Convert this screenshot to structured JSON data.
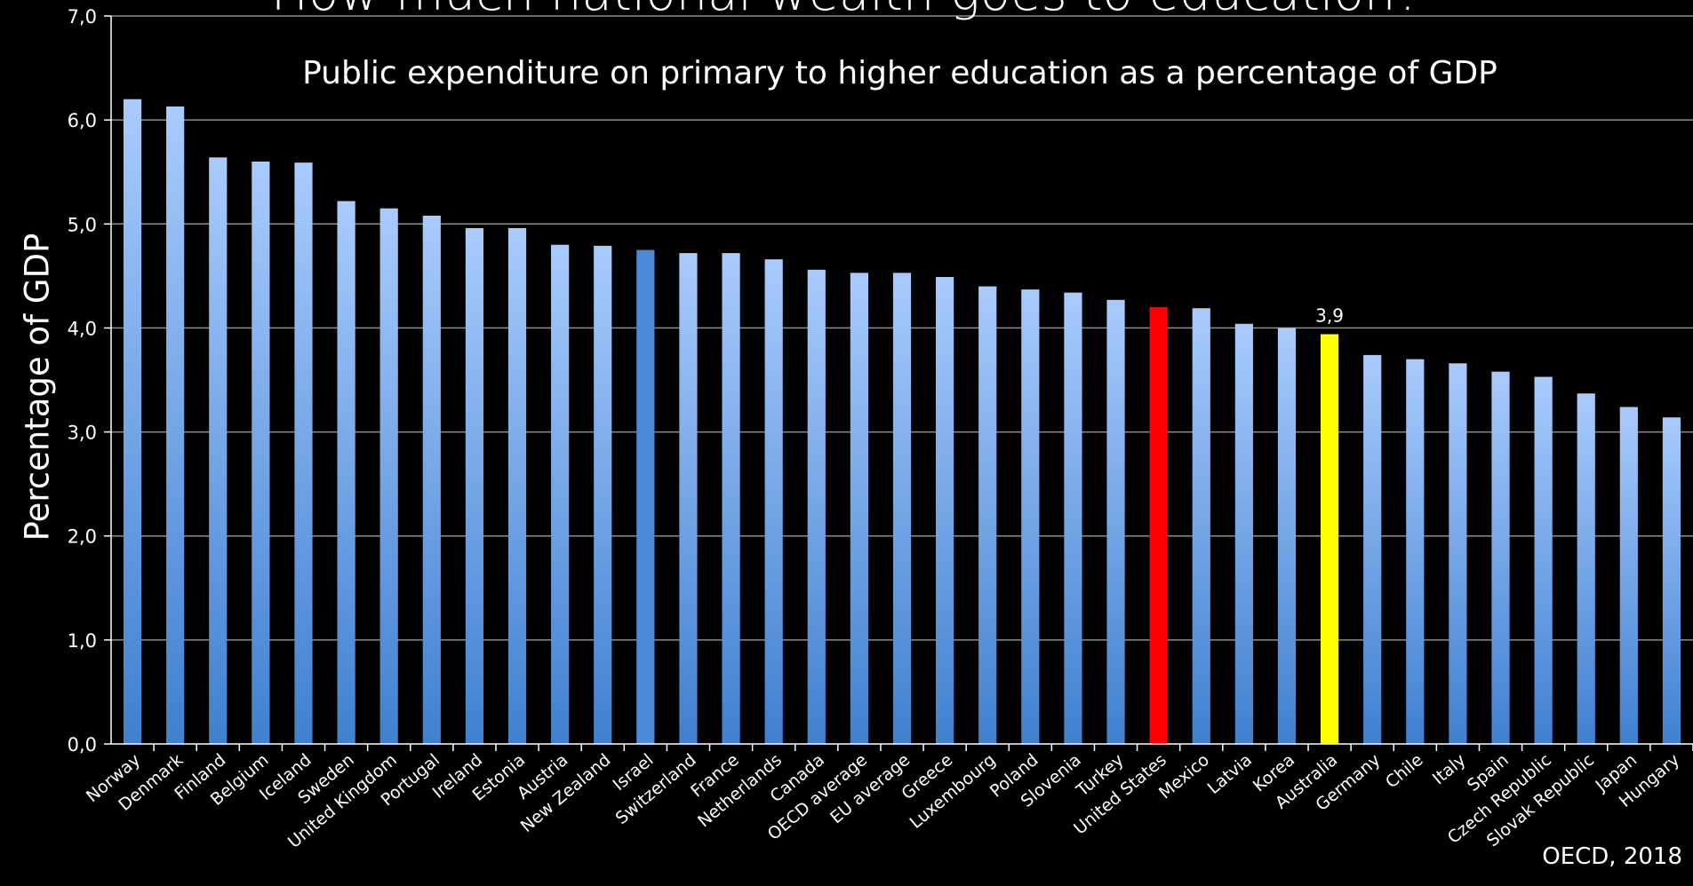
{
  "chart_data": {
    "type": "bar",
    "title": "How much national wealth goes to education?",
    "subtitle": "Public expenditure on primary to higher education as a percentage of GDP",
    "xlabel": "",
    "ylabel": "Percentage of GDP",
    "ylim": [
      0,
      7
    ],
    "yticks": [
      "0,0",
      "1,0",
      "2,0",
      "3,0",
      "4,0",
      "5,0",
      "6,0",
      "7,0"
    ],
    "grid": true,
    "source": "OECD, 2018",
    "categories": [
      "Norway",
      "Denmark",
      "Finland",
      "Belgium",
      "Iceland",
      "Sweden",
      "United Kingdom",
      "Portugal",
      "Ireland",
      "Estonia",
      "Austria",
      "New Zealand",
      "Israel",
      "Switzerland",
      "France",
      "Netherlands",
      "Canada",
      "OECD average",
      "EU average",
      "Greece",
      "Luxembourg",
      "Poland",
      "Slovenia",
      "Turkey",
      "United States",
      "Mexico",
      "Latvia",
      "Korea",
      "Australia",
      "Germany",
      "Chile",
      "Italy",
      "Spain",
      "Czech Republic",
      "Slovak Republic",
      "Japan",
      "Hungary"
    ],
    "values": [
      6.2,
      6.13,
      5.64,
      5.6,
      5.59,
      5.22,
      5.15,
      5.08,
      4.96,
      4.96,
      4.8,
      4.79,
      4.75,
      4.72,
      4.72,
      4.66,
      4.56,
      4.53,
      4.53,
      4.49,
      4.4,
      4.37,
      4.34,
      4.27,
      4.2,
      4.19,
      4.04,
      4.0,
      3.94,
      3.74,
      3.7,
      3.66,
      3.58,
      3.53,
      3.37,
      3.24,
      3.14
    ],
    "highlights": {
      "Israel": "#4a8ad8",
      "United States": "#ff0000",
      "Australia": "#ffff00"
    },
    "data_labels": {
      "Australia": "3,9"
    },
    "colors": {
      "bar_top": "#a9cbfd",
      "bar_bottom": "#4080d0",
      "grid": "#8c8c8c",
      "axis": "#ffffff",
      "text": "#ffffff",
      "background": "#000000"
    }
  }
}
